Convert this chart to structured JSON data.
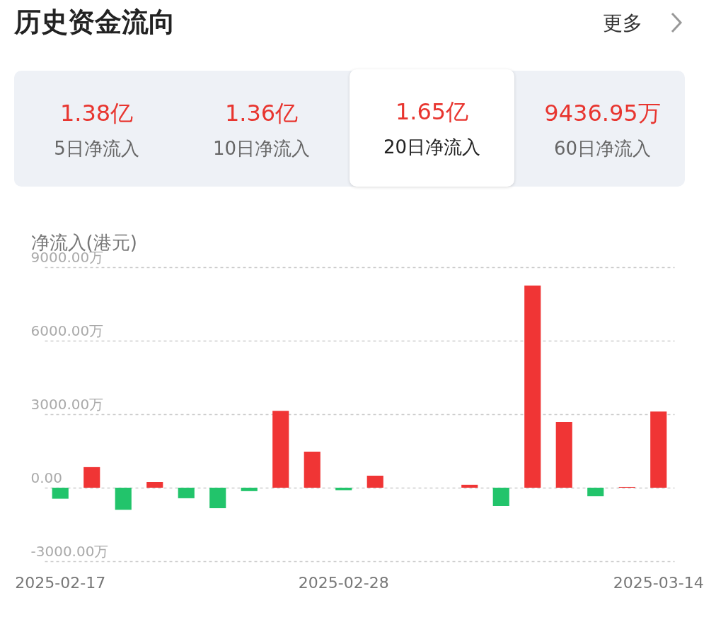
{
  "chart_data": [
    {
      "type": "other",
      "title": "历史资金流向",
      "annotations": [
        "更多",
        "1.38亿",
        "5日净流入",
        "1.36亿",
        "10日净流入",
        "1.65亿",
        "20日净流入",
        "9436.95万",
        "60日净流入"
      ]
    },
    {
      "type": "bar",
      "ylabel": "净流入(港元)",
      "categories": [
        "2025-02-17",
        null,
        null,
        null,
        null,
        null,
        null,
        null,
        null,
        "2025-02-28",
        null,
        null,
        null,
        null,
        null,
        null,
        null,
        null,
        null,
        "2025-03-14"
      ],
      "values": [
        -450,
        840,
        -900,
        230,
        -430,
        -840,
        -140,
        3140,
        1470,
        -100,
        490,
        0,
        0,
        120,
        -750,
        8250,
        2680,
        -350,
        30,
        3110
      ],
      "colors": [
        "#22c46b",
        "#f03535",
        "#22c46b",
        "#f03535",
        "#22c46b",
        "#22c46b",
        "#22c46b",
        "#f03535",
        "#f03535",
        "#22c46b",
        "#f03535",
        "#f03535",
        "#f03535",
        "#f03535",
        "#22c46b",
        "#f03535",
        "#f03535",
        "#22c46b",
        "#f03535",
        "#f03535"
      ],
      "ylim": [
        -3000,
        9000
      ],
      "yticks": [
        {
          "value": -3000,
          "label": "-3000.00万"
        },
        {
          "value": 0,
          "label": "0.00"
        },
        {
          "value": 3000,
          "label": "3000.00万"
        },
        {
          "value": 6000,
          "label": "6000.00万"
        },
        {
          "value": 9000,
          "label": "9000.00万"
        }
      ],
      "grid": "y"
    }
  ]
}
